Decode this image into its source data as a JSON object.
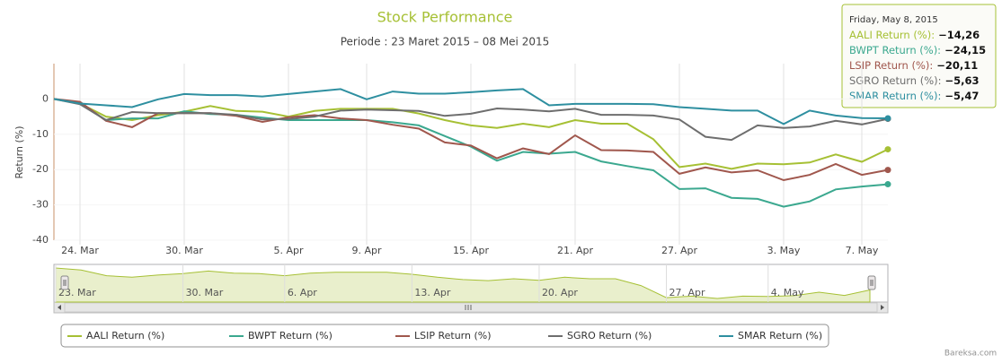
{
  "chart_data": {
    "type": "line",
    "title": "Stock Performance",
    "subtitle": "Periode : 23 Maret 2015 – 08 Mei 2015",
    "y_axis_label": "Return (%)",
    "categories": [
      null,
      "24. Mar",
      null,
      null,
      null,
      "30. Mar",
      null,
      null,
      null,
      "5. Apr",
      null,
      null,
      "9. Apr",
      null,
      null,
      null,
      "15. Apr",
      null,
      null,
      null,
      "21. Apr",
      null,
      null,
      null,
      "27. Apr",
      null,
      null,
      null,
      "3. May",
      null,
      null,
      "7. May",
      null
    ],
    "ylim": [
      -40,
      10
    ],
    "yticks": [
      -40,
      -30,
      -20,
      -10,
      0
    ],
    "grid": true,
    "series": [
      {
        "name": "AALI Return (%)",
        "color": "#a6c034",
        "values": [
          0,
          -1.3,
          -5,
          -6,
          -4.6,
          -3.6,
          -2,
          -3.4,
          -3.6,
          -5,
          -3.4,
          -2.8,
          -2.8,
          -2.8,
          -4.1,
          -6,
          -7.5,
          -8.2,
          -7,
          -8,
          -6,
          -7,
          -7,
          -11.4,
          -19.3,
          -18.3,
          -19.8,
          -18.3,
          -18.5,
          -18,
          -15.7,
          -17.8,
          -14.26
        ]
      },
      {
        "name": "BWPT Return (%)",
        "color": "#3ba88f",
        "values": [
          0,
          -1.3,
          -6,
          -5.5,
          -5.5,
          -3.5,
          -4.3,
          -4.5,
          -5.3,
          -6,
          -6,
          -6,
          -6,
          -6.6,
          -7.5,
          -10.5,
          -13.5,
          -17.5,
          -15,
          -15.5,
          -15,
          -17.7,
          -19,
          -20.2,
          -25.5,
          -25.3,
          -28,
          -28.3,
          -30.5,
          -29,
          -25.6,
          -24.8,
          -24.15
        ]
      },
      {
        "name": "LSIP Return (%)",
        "color": "#a0574d",
        "values": [
          0,
          -0.8,
          -6.2,
          -8,
          -4,
          -4,
          -4,
          -4.8,
          -6.5,
          -5.2,
          -4.6,
          -5.5,
          -6,
          -7.3,
          -8.4,
          -12.3,
          -13.2,
          -16.8,
          -14,
          -15.6,
          -10.3,
          -14.5,
          -14.6,
          -15,
          -21.2,
          -19.4,
          -20.8,
          -20.2,
          -23,
          -21.5,
          -18.4,
          -21.5,
          -20.11
        ]
      },
      {
        "name": "SGRO Return (%)",
        "color": "#6e6e6e",
        "values": [
          0,
          -1.5,
          -6,
          -3.7,
          -4,
          -4,
          -4,
          -4.5,
          -5.8,
          -5.7,
          -5,
          -3.3,
          -3,
          -3.2,
          -3.4,
          -4.8,
          -4.2,
          -2.7,
          -3,
          -3.5,
          -2.8,
          -4.5,
          -4.5,
          -4.7,
          -5.8,
          -10.7,
          -11.6,
          -7.5,
          -8.2,
          -7.8,
          -6.2,
          -7.2,
          -5.63
        ]
      },
      {
        "name": "SMAR Return (%)",
        "color": "#2e8fa0",
        "values": [
          0,
          -1.3,
          -1.8,
          -2.3,
          -0.1,
          1.4,
          1.1,
          1.1,
          0.7,
          1.4,
          2.1,
          2.8,
          -0.1,
          2.1,
          1.5,
          1.5,
          1.9,
          2.4,
          2.8,
          -1.8,
          -1.4,
          -1.4,
          -1.4,
          -1.5,
          -2.3,
          -2.8,
          -3.3,
          -3.3,
          -7.1,
          -3.3,
          -4.7,
          -5.4,
          -5.47
        ]
      }
    ],
    "tooltip": {
      "title": "Friday, May 8, 2015",
      "items": [
        {
          "label": "AALI Return (%):",
          "value": "−14,26"
        },
        {
          "label": "BWPT Return (%):",
          "value": "−24,15"
        },
        {
          "label": "LSIP Return (%):",
          "value": "−20,11"
        },
        {
          "label": "SGRO Return (%):",
          "value": "−5,63"
        },
        {
          "label": "SMAR Return (%):",
          "value": "−5,47"
        }
      ]
    },
    "navigator": {
      "categories": [
        "23. Mar",
        null,
        null,
        null,
        null,
        "30. Mar",
        null,
        null,
        null,
        "6. Apr",
        null,
        null,
        null,
        null,
        "13. Apr",
        null,
        null,
        null,
        null,
        "20. Apr",
        null,
        null,
        null,
        null,
        "27. Apr",
        null,
        null,
        null,
        "4. May",
        null,
        null,
        null,
        null
      ]
    },
    "credits": "Bareksa.com"
  }
}
